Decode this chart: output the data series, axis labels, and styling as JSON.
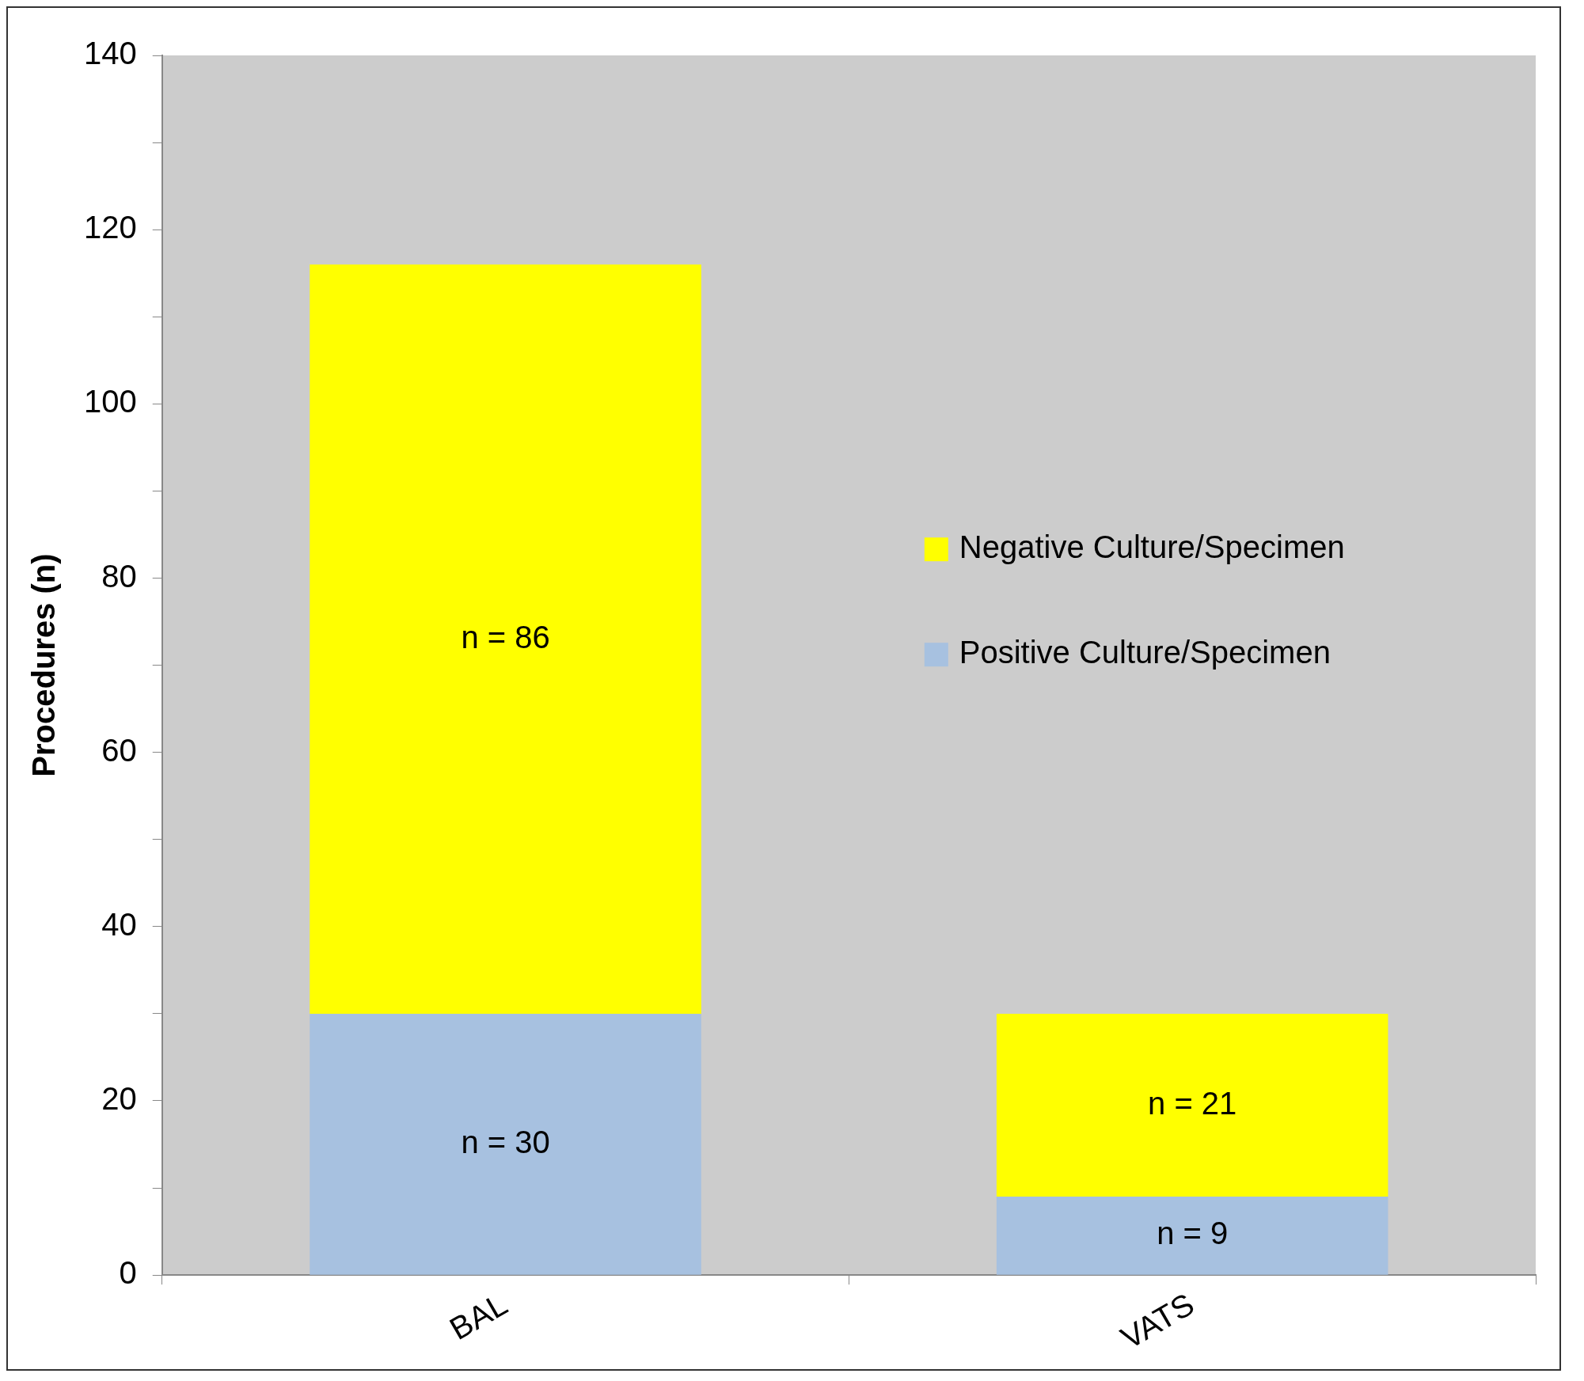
{
  "chart_data": {
    "type": "bar",
    "stacked": true,
    "ylabel": "Procedures (n)",
    "categories": [
      "BAL",
      "VATS"
    ],
    "series": [
      {
        "name": "Positive Culture/Specimen",
        "color": "#a7c1e0",
        "values": [
          30,
          9
        ],
        "value_labels": [
          "n = 30",
          "n = 9"
        ]
      },
      {
        "name": "Negative Culture/Specimen",
        "color": "#ffff00",
        "values": [
          86,
          21
        ],
        "value_labels": [
          "n = 86",
          "n = 21"
        ]
      }
    ],
    "ylim": [
      0,
      140
    ],
    "yticks": [
      0,
      {
        "value": 10,
        "label": null
      },
      20,
      {
        "value": 30,
        "label": null
      },
      40,
      {
        "value": 50,
        "label": null
      },
      60,
      {
        "value": 70,
        "label": null
      },
      80,
      {
        "value": 90,
        "label": null
      },
      100,
      {
        "value": 110,
        "label": null
      },
      120,
      {
        "value": 130,
        "label": null
      },
      140
    ],
    "grid": false,
    "legend": "right"
  }
}
